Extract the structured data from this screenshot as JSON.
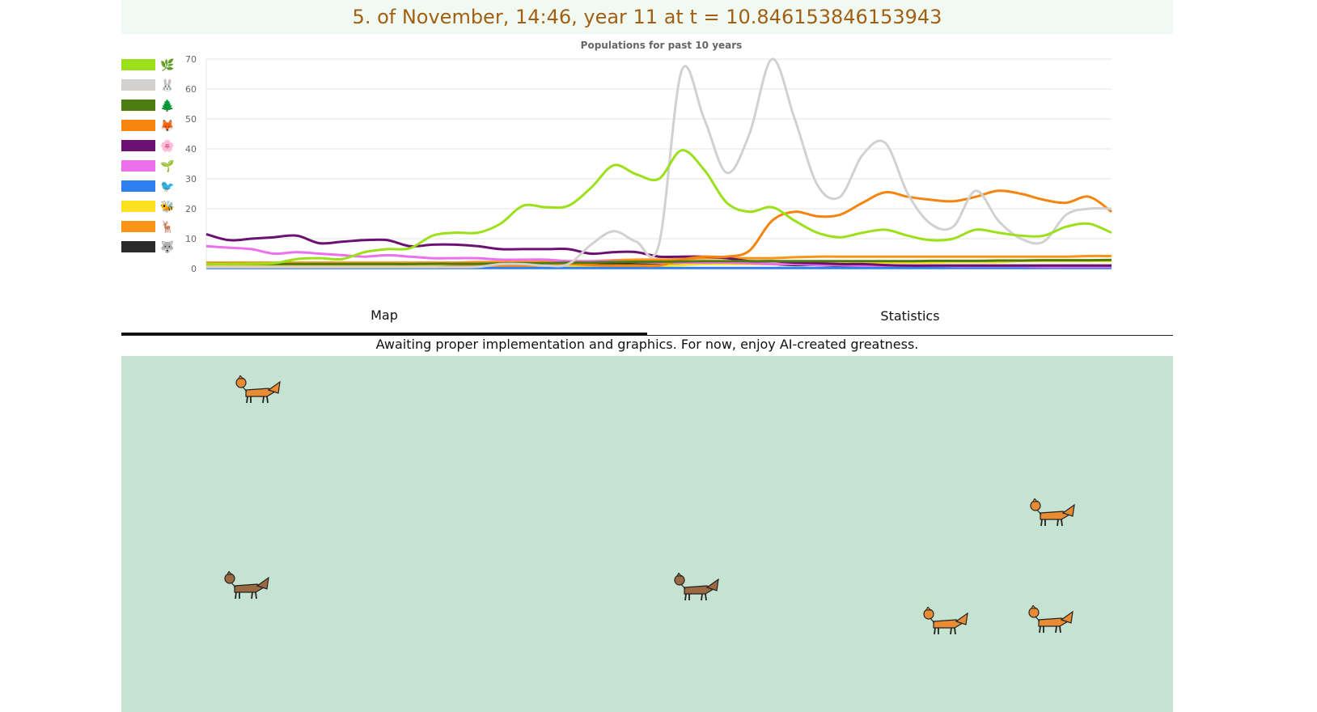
{
  "header": {
    "date_text": "5. of November, 14:46, year 11 at t = 10.846153846153943"
  },
  "tabs": [
    {
      "label": "Map",
      "active": true
    },
    {
      "label": "Statistics",
      "active": false
    }
  ],
  "notice": "Awaiting proper implementation and graphics. For now, enjoy AI-created greatness.",
  "colors": {
    "header_bg": "#f1faf2",
    "header_text": "#a25f13",
    "map_bg": "#c6e3d1",
    "fox_orange": "#e98b33",
    "fox_brown": "#9b6a43"
  },
  "map": {
    "animals": [
      {
        "species": "fox",
        "variant": "orange"
      },
      {
        "species": "fox",
        "variant": "orange"
      },
      {
        "species": "fox",
        "variant": "brown"
      },
      {
        "species": "fox",
        "variant": "brown"
      },
      {
        "species": "fox",
        "variant": "orange"
      },
      {
        "species": "fox",
        "variant": "orange"
      }
    ]
  },
  "chart_data": {
    "type": "line",
    "title": "Populations for past 10 years",
    "xlabel": "",
    "ylabel": "",
    "ylim": [
      0,
      70
    ],
    "yticks": [
      0,
      10,
      20,
      30,
      40,
      50,
      60,
      70
    ],
    "grid": true,
    "legend_position": "left",
    "x": [
      0,
      0.5,
      1,
      1.5,
      2,
      2.5,
      3,
      3.5,
      4,
      4.5,
      5,
      5.5,
      6,
      6.5,
      7,
      7.5,
      8,
      8.5,
      9,
      9.5,
      10,
      10.5,
      11,
      11.5,
      12,
      12.5,
      13,
      13.5,
      14,
      14.5,
      15,
      15.5,
      16,
      16.5,
      17,
      17.5,
      18,
      18.5,
      19,
      19.5,
      20
    ],
    "series": [
      {
        "name": "plant",
        "icon": "🌿",
        "color": "#9be019",
        "values": [
          1.5,
          1.5,
          1.6,
          1.8,
          3.2,
          3.5,
          3.2,
          5.5,
          6.5,
          6.8,
          11,
          12,
          12,
          15,
          21,
          20.5,
          21,
          27,
          34.5,
          31.5,
          30,
          39.5,
          33,
          22,
          19,
          20.5,
          16,
          12,
          10.5,
          12,
          13,
          11,
          9.5,
          10,
          13,
          12,
          11,
          11,
          14,
          15,
          12
        ]
      },
      {
        "name": "rabbit",
        "icon": "🐰",
        "color": "#d3d1cf",
        "values": [
          0.5,
          0.5,
          0.5,
          0.5,
          0.5,
          0.5,
          0.5,
          0.5,
          0.5,
          0.5,
          0.5,
          0.5,
          0.6,
          1.5,
          1.5,
          1,
          1.5,
          8,
          12.5,
          9,
          8,
          66,
          50,
          32,
          45,
          70,
          50,
          28,
          24,
          38,
          42,
          25,
          15,
          14,
          26,
          16,
          10,
          9,
          18,
          20,
          20
        ]
      },
      {
        "name": "tree",
        "icon": "🌲",
        "color": "#4d7d10",
        "values": [
          1.5,
          1.5,
          1.5,
          1.5,
          1.5,
          1.5,
          1.5,
          1.5,
          1.5,
          1.5,
          1.6,
          1.6,
          1.6,
          1.7,
          1.8,
          1.8,
          2,
          2,
          2.2,
          2.3,
          2.3,
          2.4,
          2.5,
          2.5,
          2.5,
          2.5,
          2.5,
          2.5,
          2.5,
          2.5,
          2.5,
          2.5,
          2.6,
          2.6,
          2.6,
          2.7,
          2.7,
          2.8,
          2.8,
          2.8,
          2.9
        ]
      },
      {
        "name": "fox",
        "icon": "🦊",
        "color": "#f7840e",
        "values": [
          0.5,
          0.5,
          0.5,
          0.5,
          0.5,
          0.5,
          0.5,
          0.5,
          0.5,
          0.5,
          0.5,
          0.8,
          1,
          1,
          1,
          1,
          1.5,
          1.2,
          1,
          1,
          1,
          3,
          4,
          4,
          6,
          16,
          19,
          17.5,
          18,
          22,
          25.5,
          24,
          23,
          22.5,
          24,
          26,
          25,
          23,
          22,
          24,
          19
        ]
      },
      {
        "name": "flower",
        "icon": "🌸",
        "color": "#6c1174",
        "values": [
          11.5,
          9.5,
          10,
          10.5,
          11,
          8.5,
          9,
          9.5,
          9.5,
          7.5,
          8,
          8,
          7.5,
          6.5,
          6.5,
          6.5,
          6.5,
          5,
          5.5,
          5.5,
          4,
          4,
          4,
          3.5,
          2.5,
          2.5,
          2,
          1.8,
          1.5,
          1.5,
          1.2,
          1,
          1,
          1,
          1,
          1,
          1,
          1,
          1,
          1,
          1
        ]
      },
      {
        "name": "sprout",
        "icon": "🌱",
        "color": "#ec70ec",
        "values": [
          7.5,
          7,
          6.5,
          5,
          5.5,
          5,
          4.5,
          4,
          4.5,
          4,
          3.5,
          3.5,
          3.5,
          3,
          3,
          3,
          2.5,
          2.5,
          2.5,
          2.2,
          2,
          2,
          2,
          2,
          1.8,
          1.5,
          1.5,
          1.2,
          1.2,
          1,
          1,
          1,
          1,
          0.8,
          0.8,
          0.8,
          0.8,
          0.6,
          0.6,
          0.6,
          0.6
        ]
      },
      {
        "name": "bird",
        "icon": "🐦",
        "color": "#2e7ff0",
        "values": [
          0.2,
          0.2,
          0.2,
          0.2,
          0.2,
          0.2,
          0.2,
          0.2,
          0.2,
          0.2,
          0.2,
          0.2,
          0.2,
          0.2,
          0.2,
          0.2,
          0.2,
          0.2,
          0.2,
          0.2,
          0.2,
          0.2,
          0.2,
          0.2,
          0.2,
          0.2,
          0.2,
          0.2,
          0.2,
          0.2,
          0.2,
          0.2,
          0.2,
          0.2,
          0.2,
          0.2,
          0.2,
          0.2,
          0.2,
          0.2,
          0.2
        ]
      },
      {
        "name": "bee",
        "icon": "🐝",
        "color": "#fee022",
        "values": [
          1,
          1,
          1,
          1,
          1,
          1,
          1,
          1,
          1,
          1,
          1,
          1,
          1,
          1,
          1,
          1,
          1,
          1,
          1,
          1,
          1,
          1.2,
          1.5,
          1.5,
          1.5,
          1.5,
          1.8,
          2,
          2,
          2,
          2,
          2,
          2,
          2.2,
          2.2,
          2.2,
          2.5,
          2.5,
          2.5,
          2.5,
          2.5
        ]
      },
      {
        "name": "deer",
        "icon": "🦌",
        "color": "#fa9316",
        "values": [
          2,
          2,
          2,
          2,
          2,
          2,
          2,
          2,
          2,
          2,
          2,
          2,
          2.2,
          2.2,
          2.2,
          2.3,
          2.5,
          2.5,
          2.8,
          3,
          3,
          3.2,
          3.5,
          3.5,
          3.5,
          3.5,
          3.8,
          4,
          4,
          4,
          4,
          4,
          4,
          4,
          4,
          4,
          4,
          4,
          4,
          4.2,
          4.2
        ]
      },
      {
        "name": "wolf",
        "icon": "🐺",
        "color": "#2a2a2a",
        "values": [
          1,
          1,
          1,
          1,
          1,
          1,
          1,
          1.2,
          1.2,
          1.2,
          1.2,
          1.3,
          1.3,
          1.5,
          1.5,
          1.5,
          1.5,
          1.6,
          1.6,
          1.7,
          1.7,
          1.8,
          2,
          2,
          1.8,
          1.5,
          1.2,
          1.2,
          1,
          1,
          1,
          1,
          1,
          1,
          1,
          1,
          1,
          1,
          1,
          1,
          1
        ]
      }
    ]
  }
}
